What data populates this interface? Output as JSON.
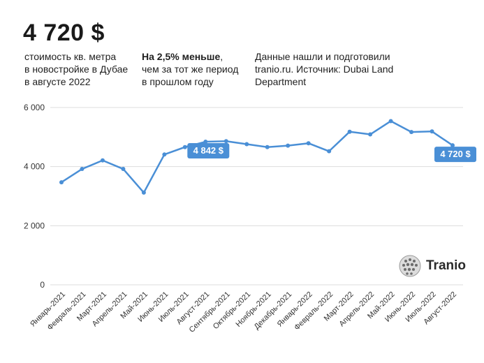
{
  "header": {
    "headline": "4 720 $",
    "caption_left": [
      "стоимость кв. метра",
      "в новостройке в Дубае",
      "в августе 2022"
    ],
    "caption_mid_bold": "На 2,5% меньше",
    "caption_mid_rest": [
      ",",
      "чем за тот же период",
      "в прошлом году"
    ],
    "caption_right": [
      "Данные нашли и подготовили",
      "tranio.ru. Источник: Dubai Land",
      "Department"
    ]
  },
  "logo": {
    "text": "Tranio",
    "icon": "tranio-sphere-icon"
  },
  "colors": {
    "line": "#4a8fd6",
    "grid": "#dddddd",
    "label_bg": "#4a8fd6",
    "label_text": "#ffffff"
  },
  "chart_data": {
    "type": "line",
    "categories": [
      "Январь-2021",
      "Февраль-2021",
      "Март-2021",
      "Апрель-2021",
      "Май-2021",
      "Июнь-2021",
      "Июль-2021",
      "Август-2021",
      "Сентябрь-2021",
      "Октябрь-2021",
      "Ноябрь-2021",
      "Декабрь-2021",
      "Январь-2022",
      "Февраль-2022",
      "Март-2022",
      "Апрель-2022",
      "Май-2022",
      "Июнь-2022",
      "Июль-2022",
      "Август-2022"
    ],
    "series": [
      {
        "values": [
          3470,
          3920,
          4210,
          3920,
          3120,
          4410,
          4660,
          4842,
          4860,
          4760,
          4660,
          4710,
          4790,
          4520,
          5180,
          5090,
          5540,
          5170,
          5190,
          4720
        ]
      }
    ],
    "ylim": [
      0,
      6000
    ],
    "yticks": [
      0,
      2000,
      4000,
      6000
    ],
    "ytick_labels": [
      "0",
      "2 000",
      "4 000",
      "6 000"
    ],
    "grid": true,
    "annotations": [
      {
        "index": 7,
        "text": "4 842 $"
      },
      {
        "index": 19,
        "text": "4 720 $"
      }
    ]
  }
}
